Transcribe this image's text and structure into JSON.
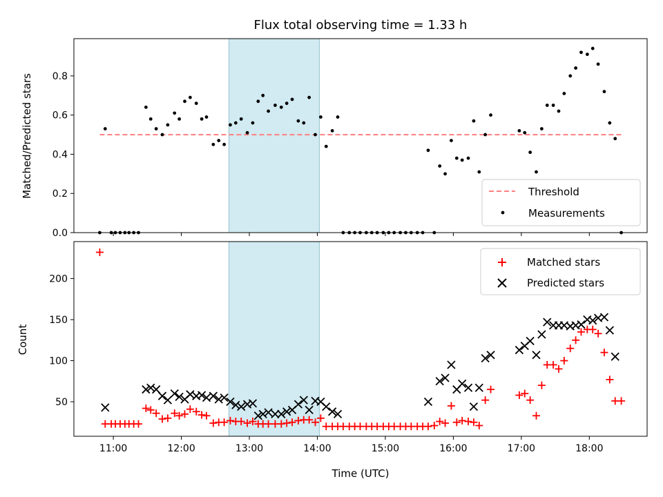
{
  "chart_data": [
    {
      "type": "scatter",
      "title": "Flux total observing time = 1.33 h",
      "xlabel": "",
      "ylabel": "Matched/Predicted stars",
      "xlim": [
        10.42,
        18.85
      ],
      "ylim": [
        0,
        0.99
      ],
      "yticks": [
        0.0,
        0.2,
        0.4,
        0.6,
        0.8
      ],
      "ytick_labels": [
        "0.0",
        "0.2",
        "0.4",
        "0.6",
        "0.8"
      ],
      "shaded_interval": [
        12.7,
        14.03
      ],
      "shade_color": "#add8e6",
      "legend_position": "lower-right",
      "series": [
        {
          "name": "Threshold",
          "style": "dashed-line",
          "color": "#ff7f7f",
          "x": [
            10.8,
            18.47
          ],
          "y": [
            0.5,
            0.5
          ]
        },
        {
          "name": "Measurements",
          "style": "dot",
          "color": "#000000",
          "x": [
            10.8,
            10.88,
            10.97,
            11.03,
            11.1,
            11.17,
            11.23,
            11.3,
            11.37,
            11.48,
            11.55,
            11.63,
            11.72,
            11.8,
            11.9,
            11.97,
            12.05,
            12.13,
            12.22,
            12.3,
            12.37,
            12.47,
            12.55,
            12.63,
            12.72,
            12.8,
            12.88,
            12.97,
            13.05,
            13.13,
            13.2,
            13.28,
            13.38,
            13.47,
            13.55,
            13.63,
            13.72,
            13.8,
            13.88,
            13.97,
            14.05,
            14.13,
            14.22,
            14.3,
            14.38,
            14.47,
            14.55,
            14.63,
            14.72,
            14.8,
            14.88,
            14.97,
            15.05,
            15.13,
            15.22,
            15.3,
            15.38,
            15.47,
            15.55,
            15.63,
            15.72,
            15.8,
            15.88,
            15.97,
            16.05,
            16.13,
            16.22,
            16.3,
            16.38,
            16.47,
            16.55,
            16.97,
            17.05,
            17.13,
            17.22,
            17.3,
            17.38,
            17.47,
            17.55,
            17.63,
            17.72,
            17.8,
            17.88,
            17.97,
            18.05,
            18.13,
            18.22,
            18.3,
            18.38,
            18.47
          ],
          "y": [
            0.0,
            0.53,
            0.0,
            0.0,
            0.0,
            0.0,
            0.0,
            0.0,
            0.0,
            0.64,
            0.58,
            0.53,
            0.5,
            0.55,
            0.61,
            0.58,
            0.67,
            0.69,
            0.66,
            0.58,
            0.59,
            0.45,
            0.47,
            0.45,
            0.55,
            0.56,
            0.58,
            0.51,
            0.56,
            0.67,
            0.7,
            0.62,
            0.65,
            0.64,
            0.66,
            0.68,
            0.57,
            0.56,
            0.69,
            0.5,
            0.59,
            0.44,
            0.52,
            0.59,
            0.0,
            0.0,
            0.0,
            0.0,
            0.0,
            0.0,
            0.0,
            0.0,
            0.0,
            0.0,
            0.0,
            0.0,
            0.0,
            0.0,
            0.0,
            0.42,
            0.0,
            0.34,
            0.3,
            0.47,
            0.38,
            0.37,
            0.38,
            0.57,
            0.31,
            0.5,
            0.6,
            0.52,
            0.51,
            0.41,
            0.31,
            0.53,
            0.65,
            0.65,
            0.62,
            0.71,
            0.8,
            0.84,
            0.92,
            0.91,
            0.94,
            0.86,
            0.72,
            0.56,
            0.48,
            0.0
          ]
        }
      ]
    },
    {
      "type": "scatter",
      "title": "",
      "xlabel": "Time (UTC)",
      "ylabel": "Count",
      "xlim": [
        10.42,
        18.85
      ],
      "ylim": [
        8,
        245
      ],
      "yticks": [
        50,
        100,
        150,
        200
      ],
      "ytick_labels": [
        "50",
        "100",
        "150",
        "200"
      ],
      "xticks": [
        11,
        12,
        13,
        14,
        15,
        16,
        17,
        18
      ],
      "xtick_labels": [
        "11:00",
        "12:00",
        "13:00",
        "14:00",
        "15:00",
        "16:00",
        "17:00",
        "18:00"
      ],
      "shaded_interval": [
        12.7,
        14.03
      ],
      "shade_color": "#add8e6",
      "legend_position": "top-right",
      "series": [
        {
          "name": "Matched stars",
          "style": "plus",
          "color": "#ff0000",
          "x": [
            10.8,
            10.88,
            10.97,
            11.03,
            11.1,
            11.17,
            11.23,
            11.3,
            11.37,
            11.48,
            11.55,
            11.63,
            11.72,
            11.8,
            11.9,
            11.97,
            12.05,
            12.13,
            12.22,
            12.3,
            12.37,
            12.47,
            12.55,
            12.63,
            12.72,
            12.8,
            12.88,
            12.97,
            13.05,
            13.13,
            13.2,
            13.28,
            13.38,
            13.47,
            13.55,
            13.63,
            13.72,
            13.8,
            13.88,
            13.97,
            14.05,
            14.13,
            14.22,
            14.3,
            14.38,
            14.47,
            14.55,
            14.63,
            14.72,
            14.8,
            14.88,
            14.97,
            15.05,
            15.13,
            15.22,
            15.3,
            15.38,
            15.47,
            15.55,
            15.63,
            15.72,
            15.8,
            15.88,
            15.97,
            16.05,
            16.13,
            16.22,
            16.3,
            16.38,
            16.47,
            16.55,
            16.97,
            17.05,
            17.13,
            17.22,
            17.3,
            17.38,
            17.47,
            17.55,
            17.63,
            17.72,
            17.8,
            17.88,
            17.97,
            18.05,
            18.13,
            18.22,
            18.3,
            18.38,
            18.47
          ],
          "y": [
            232,
            23,
            23,
            23,
            23,
            23,
            23,
            23,
            23,
            42,
            40,
            36,
            29,
            30,
            36,
            33,
            35,
            41,
            38,
            34,
            33,
            24,
            25,
            25,
            27,
            26,
            26,
            24,
            26,
            23,
            23,
            23,
            23,
            23,
            24,
            25,
            27,
            28,
            28,
            25,
            30,
            20,
            20,
            20,
            20,
            20,
            20,
            20,
            20,
            20,
            20,
            20,
            20,
            20,
            20,
            20,
            20,
            20,
            20,
            20,
            21,
            26,
            24,
            45,
            25,
            27,
            26,
            25,
            21,
            52,
            65,
            58,
            60,
            52,
            33,
            70,
            95,
            95,
            90,
            100,
            115,
            125,
            135,
            138,
            138,
            133,
            110,
            77,
            51,
            51
          ]
        },
        {
          "name": "Predicted stars",
          "style": "x",
          "color": "#000000",
          "x": [
            10.88,
            11.48,
            11.55,
            11.63,
            11.72,
            11.8,
            11.9,
            11.97,
            12.05,
            12.13,
            12.22,
            12.3,
            12.37,
            12.47,
            12.55,
            12.63,
            12.72,
            12.8,
            12.88,
            12.97,
            13.05,
            13.13,
            13.2,
            13.28,
            13.38,
            13.47,
            13.55,
            13.63,
            13.72,
            13.8,
            13.88,
            13.97,
            14.05,
            14.13,
            14.22,
            14.3,
            15.63,
            15.8,
            15.88,
            15.97,
            16.05,
            16.13,
            16.22,
            16.3,
            16.38,
            16.47,
            16.55,
            16.97,
            17.05,
            17.13,
            17.22,
            17.3,
            17.38,
            17.47,
            17.55,
            17.63,
            17.72,
            17.8,
            17.88,
            17.97,
            18.05,
            18.13,
            18.22,
            18.3,
            18.38
          ],
          "y": [
            43,
            65,
            67,
            65,
            57,
            52,
            60,
            56,
            53,
            59,
            57,
            58,
            55,
            57,
            53,
            55,
            50,
            46,
            44,
            47,
            48,
            33,
            35,
            37,
            35,
            35,
            38,
            40,
            47,
            52,
            40,
            51,
            50,
            44,
            38,
            35,
            50,
            75,
            79,
            95,
            65,
            72,
            67,
            44,
            67,
            103,
            107,
            113,
            118,
            124,
            107,
            132,
            147,
            143,
            143,
            143,
            142,
            143,
            144,
            150,
            149,
            152,
            153,
            137,
            105
          ]
        }
      ]
    }
  ]
}
